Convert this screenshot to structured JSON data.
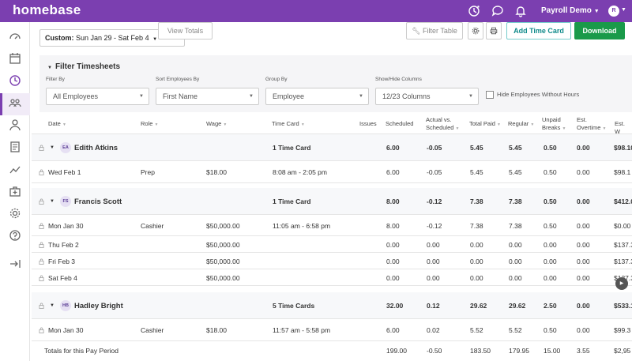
{
  "app": {
    "logo": "homebase",
    "user_menu": "Payroll Demo",
    "avatar_initial": "R"
  },
  "toolbar": {
    "date_prefix": "Custom:",
    "date_range": "Sun Jan 29 - Sat Feb 4",
    "view_totals": "View Totals",
    "filter_table": "Filter Table",
    "add_time_card": "Add Time Card",
    "download": "Download"
  },
  "filters": {
    "title": "Filter Timesheets",
    "filter_by_label": "Filter By",
    "filter_by_value": "All Employees",
    "sort_label": "Sort Employees By",
    "sort_value": "First Name",
    "group_label": "Group By",
    "group_value": "Employee",
    "columns_label": "Show/Hide Columns",
    "columns_value": "12/23 Columns",
    "hide_label": "Hide Employees Without Hours"
  },
  "columns": [
    "Date",
    "Role",
    "Wage",
    "Time Card",
    "Issues",
    "Scheduled",
    "Actual vs.",
    "Scheduled",
    "Total Paid",
    "Regular",
    "Unpaid",
    "Breaks",
    "Est.",
    "Overtime",
    "Est. W"
  ],
  "groups": [
    {
      "initials": "EA",
      "name": "Edith Atkins",
      "time_card": "1 Time Card",
      "scheduled": "6.00",
      "actual_vs": "-0.05",
      "total_paid": "5.45",
      "regular": "5.45",
      "unpaid": "0.50",
      "overtime": "0.00",
      "est_wage": "$98.10",
      "rows": [
        {
          "date": "Wed Feb 1",
          "role": "Prep",
          "wage": "$18.00",
          "time_card": "8:08 am - 2:05 pm",
          "scheduled": "6.00",
          "actual_vs": "-0.05",
          "total_paid": "5.45",
          "regular": "5.45",
          "unpaid": "0.50",
          "overtime": "0.00",
          "est_wage": "$98.1"
        }
      ]
    },
    {
      "initials": "FS",
      "name": "Francis Scott",
      "time_card": "1 Time Card",
      "scheduled": "8.00",
      "actual_vs": "-0.12",
      "total_paid": "7.38",
      "regular": "7.38",
      "unpaid": "0.50",
      "overtime": "0.00",
      "est_wage": "$412.0",
      "rows": [
        {
          "date": "Mon Jan 30",
          "role": "Cashier",
          "wage": "$50,000.00",
          "time_card": "11:05 am - 6:58 pm",
          "scheduled": "8.00",
          "actual_vs": "-0.12",
          "total_paid": "7.38",
          "regular": "7.38",
          "unpaid": "0.50",
          "overtime": "0.00",
          "est_wage": "$0.00"
        },
        {
          "date": "Thu Feb 2",
          "role": "",
          "wage": "$50,000.00",
          "time_card": "",
          "scheduled": "0.00",
          "actual_vs": "0.00",
          "total_paid": "0.00",
          "regular": "0.00",
          "unpaid": "0.00",
          "overtime": "0.00",
          "est_wage": "$137.3"
        },
        {
          "date": "Fri Feb 3",
          "role": "",
          "wage": "$50,000.00",
          "time_card": "",
          "scheduled": "0.00",
          "actual_vs": "0.00",
          "total_paid": "0.00",
          "regular": "0.00",
          "unpaid": "0.00",
          "overtime": "0.00",
          "est_wage": "$137.3"
        },
        {
          "date": "Sat Feb 4",
          "role": "",
          "wage": "$50,000.00",
          "time_card": "",
          "scheduled": "0.00",
          "actual_vs": "0.00",
          "total_paid": "0.00",
          "regular": "0.00",
          "unpaid": "0.00",
          "overtime": "0.00",
          "est_wage": "$137.3"
        }
      ]
    },
    {
      "initials": "HB",
      "name": "Hadley Bright",
      "time_card": "5 Time Cards",
      "scheduled": "32.00",
      "actual_vs": "0.12",
      "total_paid": "29.62",
      "regular": "29.62",
      "unpaid": "2.50",
      "overtime": "0.00",
      "est_wage": "$533.1",
      "rows": [
        {
          "date": "Mon Jan 30",
          "role": "Cashier",
          "wage": "$18.00",
          "time_card": "11:57 am - 5:58 pm",
          "scheduled": "6.00",
          "actual_vs": "0.02",
          "total_paid": "5.52",
          "regular": "5.52",
          "unpaid": "0.50",
          "overtime": "0.00",
          "est_wage": "$99.3"
        }
      ]
    }
  ],
  "totals": {
    "label": "Totals for this Pay Period",
    "scheduled": "199.00",
    "actual_vs": "-0.50",
    "total_paid": "183.50",
    "regular": "179.95",
    "unpaid": "15.00",
    "overtime": "3.55",
    "est_wage": "$2,95"
  }
}
